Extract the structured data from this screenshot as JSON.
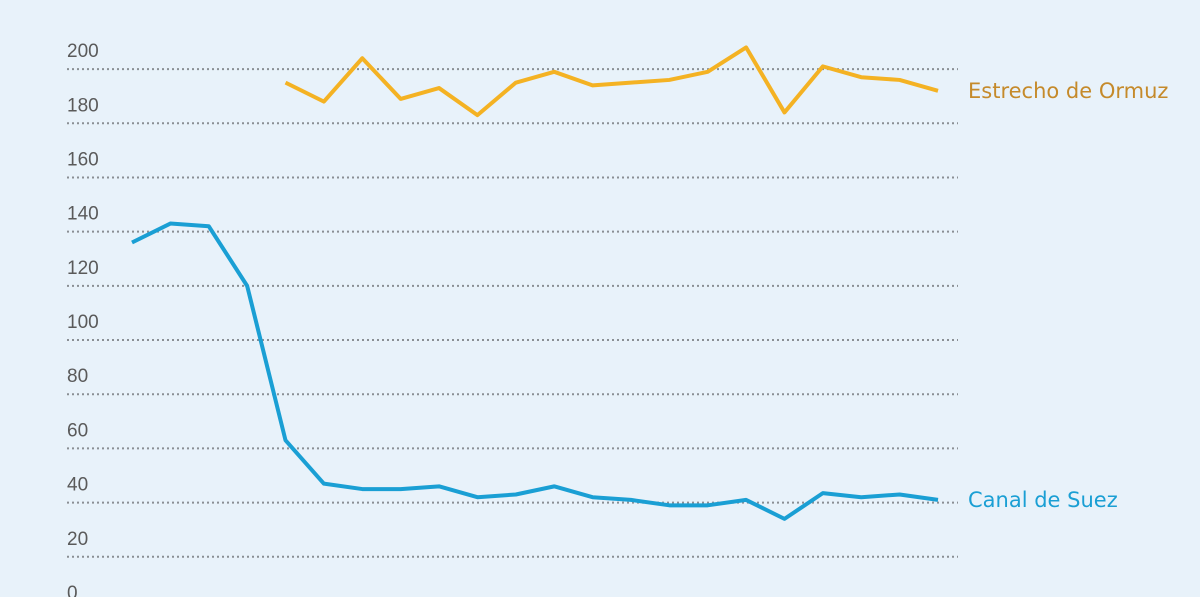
{
  "chart_data": {
    "type": "line",
    "categories": [
      null,
      null,
      null,
      null,
      null,
      null,
      null,
      null,
      null,
      null,
      null,
      null,
      null,
      null,
      null,
      null,
      null,
      null,
      null,
      null,
      null,
      null
    ],
    "series": [
      {
        "name": "Canal de Suez",
        "color": "#1a9fd4",
        "label_color": "#1a9fd4",
        "values": [
          136,
          143,
          142,
          120,
          63,
          47,
          45,
          45,
          46,
          42,
          43,
          46,
          42,
          41,
          39,
          39,
          41,
          34,
          43.5,
          42,
          43,
          41
        ]
      },
      {
        "name": "Estrecho de Ormuz",
        "color": "#f4b223",
        "label_color": "#c58a2a",
        "values": [
          null,
          null,
          null,
          null,
          195,
          188,
          204,
          189,
          193,
          183,
          195,
          199,
          194,
          195,
          196,
          199,
          208,
          184,
          201,
          197,
          196,
          192
        ]
      }
    ],
    "ylim": [
      0,
      210
    ],
    "yticks": [
      0,
      20,
      40,
      60,
      80,
      100,
      120,
      140,
      160,
      180,
      200
    ],
    "grid": true
  }
}
